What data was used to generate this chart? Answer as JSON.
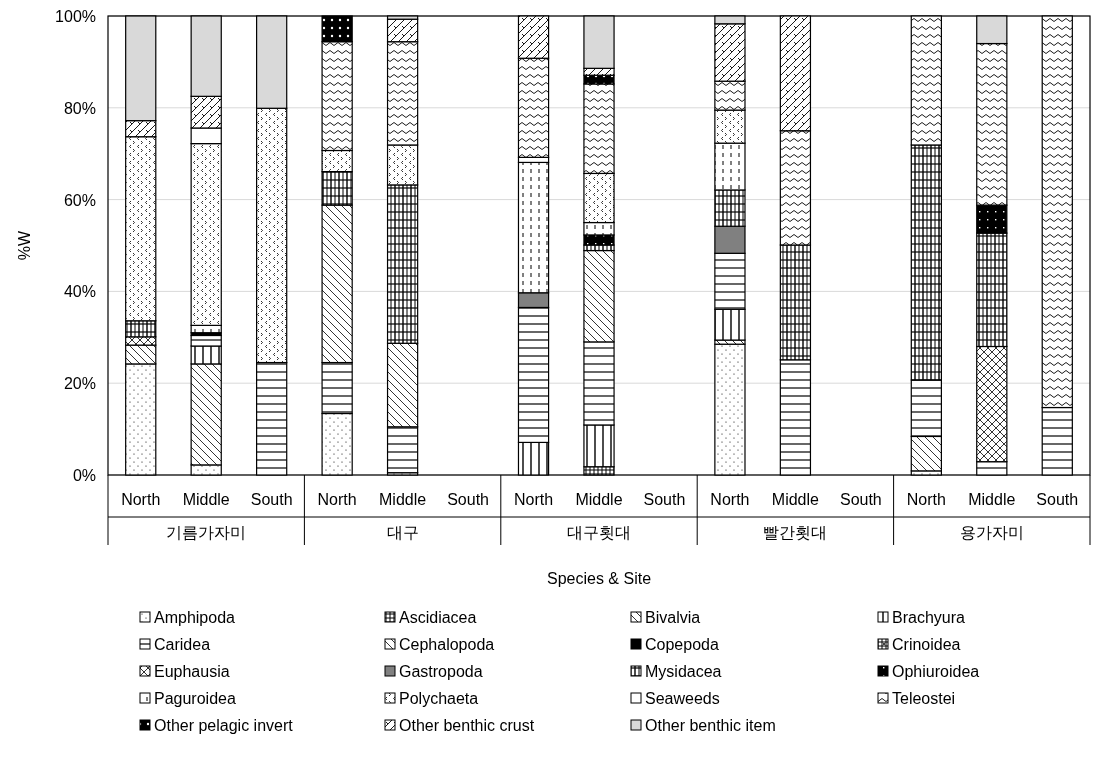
{
  "chart_data": {
    "type": "bar",
    "stacked": true,
    "xlabel": "Species & Site",
    "ylabel": "%W",
    "categories": [
      "North",
      "Middle",
      "South",
      "North",
      "Middle",
      "South",
      "North",
      "Middle",
      "South",
      "North",
      "Middle",
      "South",
      "North",
      "Middle",
      "South"
    ],
    "annotations": [
      "기름가자미",
      "대구",
      "대구횟대",
      "빨간횟대",
      "용가자미"
    ],
    "ylim": [
      0,
      100
    ],
    "yticks": [
      {
        "value": 0,
        "label": "0%"
      },
      {
        "value": 20,
        "label": "20%"
      },
      {
        "value": 40,
        "label": "40%"
      },
      {
        "value": 60,
        "label": "60%"
      },
      {
        "value": 80,
        "label": "80%"
      },
      {
        "value": 100,
        "label": "100%"
      }
    ],
    "grid": "y",
    "legend": "bottom",
    "series": [
      {
        "name": "Amphipoda",
        "color": "#000000",
        "values": [
          24.2,
          2.2,
          null,
          13.4,
          0.5,
          null,
          null,
          null,
          null,
          28.5,
          null,
          null,
          0.9,
          null,
          null
        ]
      },
      {
        "name": "Ascidiacea",
        "color": "#000000",
        "values": [
          null,
          null,
          null,
          null,
          null,
          null,
          null,
          1.8,
          null,
          null,
          null,
          null,
          null,
          null,
          null
        ]
      },
      {
        "name": "Bivalvia",
        "color": "#000000",
        "values": [
          4.1,
          22.0,
          null,
          null,
          null,
          null,
          null,
          null,
          null,
          0.9,
          null,
          null,
          7.5,
          null,
          null
        ]
      },
      {
        "name": "Brachyura",
        "color": "#000000",
        "values": [
          null,
          3.9,
          null,
          null,
          null,
          null,
          7.1,
          9.1,
          null,
          6.7,
          null,
          null,
          null,
          null,
          null
        ]
      },
      {
        "name": "Caridea",
        "color": "#000000",
        "values": [
          null,
          2.3,
          24.5,
          11.1,
          10.0,
          null,
          29.4,
          18.1,
          null,
          12.2,
          25.1,
          null,
          12.3,
          2.9,
          14.7
        ]
      },
      {
        "name": "Cephalopoda",
        "color": "#000000",
        "values": [
          null,
          null,
          null,
          34.3,
          18.2,
          null,
          null,
          19.9,
          null,
          null,
          null,
          null,
          null,
          null,
          null
        ]
      },
      {
        "name": "Copepoda",
        "color": "#000000",
        "values": [
          null,
          0.6,
          null,
          null,
          null,
          null,
          null,
          null,
          null,
          null,
          null,
          null,
          null,
          null,
          null
        ]
      },
      {
        "name": "Crinoidea",
        "color": "#000000",
        "values": [
          null,
          null,
          null,
          null,
          null,
          null,
          null,
          null,
          null,
          null,
          null,
          null,
          null,
          null,
          null
        ]
      },
      {
        "name": "Euphausia",
        "color": "#000000",
        "values": [
          1.8,
          null,
          null,
          null,
          null,
          null,
          null,
          null,
          null,
          null,
          null,
          null,
          null,
          25.1,
          null
        ]
      },
      {
        "name": "Gastropoda",
        "color": "#808080",
        "values": [
          null,
          null,
          null,
          null,
          null,
          null,
          3.2,
          null,
          null,
          5.9,
          null,
          null,
          null,
          null,
          null
        ]
      },
      {
        "name": "Mysidacea",
        "color": "#000000",
        "values": [
          3.5,
          null,
          null,
          7.3,
          34.5,
          null,
          null,
          1.2,
          null,
          7.9,
          25.0,
          null,
          51.2,
          24.7,
          null
        ]
      },
      {
        "name": "Ophiuroidea",
        "color": "#000000",
        "values": [
          null,
          null,
          null,
          null,
          null,
          null,
          null,
          2.2,
          null,
          null,
          null,
          null,
          null,
          6.1,
          null
        ]
      },
      {
        "name": "Paguroidea",
        "color": "#000000",
        "values": [
          null,
          1.6,
          null,
          null,
          null,
          null,
          28.4,
          2.7,
          null,
          10.2,
          null,
          null,
          null,
          null,
          null
        ]
      },
      {
        "name": "Polychaeta",
        "color": "#000000",
        "values": [
          40.1,
          39.6,
          55.4,
          4.6,
          8.7,
          null,
          null,
          10.7,
          null,
          7.2,
          null,
          null,
          null,
          null,
          null
        ]
      },
      {
        "name": "Seaweeds",
        "color": "#ffffff",
        "values": [
          null,
          3.4,
          null,
          null,
          null,
          null,
          1.1,
          null,
          null,
          null,
          null,
          null,
          null,
          null,
          null
        ]
      },
      {
        "name": "Teleostei",
        "color": "#000000",
        "values": [
          null,
          null,
          null,
          23.7,
          22.5,
          null,
          21.6,
          19.5,
          null,
          6.3,
          24.9,
          null,
          28.1,
          35.2,
          85.3
        ]
      },
      {
        "name": "Other pelagic invert",
        "color": "#000000",
        "values": [
          null,
          null,
          null,
          5.6,
          null,
          null,
          null,
          1.9,
          null,
          null,
          null,
          null,
          null,
          null,
          null
        ]
      },
      {
        "name": "Other benthic crust",
        "color": "#000000",
        "values": [
          3.5,
          6.9,
          null,
          null,
          4.9,
          null,
          9.2,
          1.5,
          null,
          12.5,
          25.0,
          null,
          null,
          null,
          null
        ]
      },
      {
        "name": "Other benthic item",
        "color": "#d9d9d9",
        "values": [
          22.8,
          17.5,
          20.1,
          null,
          0.7,
          null,
          null,
          11.4,
          null,
          1.7,
          null,
          null,
          null,
          6.0,
          null
        ]
      }
    ]
  }
}
